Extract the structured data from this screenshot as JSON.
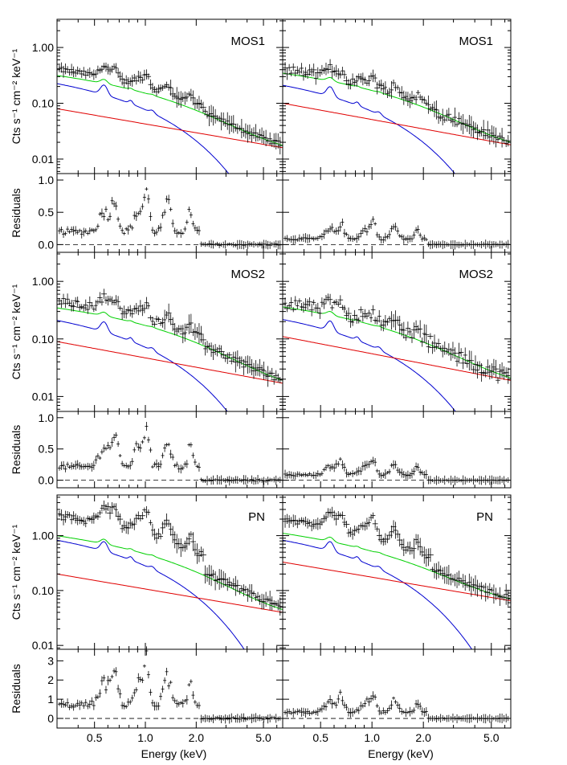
{
  "labels": {
    "xlabel": "Energy (keV)",
    "ylabel_flux": "Cts s⁻¹ cm⁻² keV⁻¹",
    "ylabel_resid": "Residuals"
  },
  "chart_data": {
    "type": "line",
    "x_scale": "log",
    "xlim": [
      0.3,
      6.5
    ],
    "x_ticks": [
      0.5,
      1.0,
      2.0,
      5.0
    ],
    "x_tick_labels": [
      "0.5",
      "1.0",
      "2.0",
      "5.0"
    ],
    "xlabel": "Energy (keV)",
    "line_colors": {
      "powerlaw": "#e00000",
      "total": "#00d000",
      "thermal": "#0000d0",
      "data": "#000000"
    },
    "rows": [
      {
        "instrument": "MOS1",
        "flux_ylim": [
          0.0055,
          3.2
        ],
        "flux_ticks": [
          0.01,
          0.1,
          1.0
        ],
        "flux_tick_labels": [
          "0.01",
          "0.10",
          "1.00"
        ],
        "resid_ylim": [
          -0.12,
          1.1
        ],
        "resid_ticks": [
          0,
          0.5,
          1.0
        ],
        "resid_tick_labels": [
          "0.0",
          "0.5",
          "1.0"
        ],
        "panels": [
          {
            "instrument": "MOS1",
            "powerlaw": {
              "x": [
                0.3,
                6.5
              ],
              "y": [
                0.08,
                0.016
              ]
            },
            "peak": 0.3,
            "total_offset": 0.1,
            "data_level": 0.5,
            "noise": 0.2,
            "resid_scale": 0.8
          },
          {
            "instrument": "MOS1",
            "powerlaw": {
              "x": [
                0.3,
                6.5
              ],
              "y": [
                0.1,
                0.018
              ]
            },
            "peak": 0.28,
            "total_offset": 0.12,
            "data_level": 0.33,
            "noise": 0.35,
            "resid_scale": 0.35
          }
        ]
      },
      {
        "instrument": "MOS2",
        "flux_ylim": [
          0.0055,
          3.2
        ],
        "flux_ticks": [
          0.01,
          0.1,
          1.0
        ],
        "flux_tick_labels": [
          "0.01",
          "0.10",
          "1.00"
        ],
        "resid_ylim": [
          -0.12,
          1.1
        ],
        "resid_ticks": [
          0,
          0.5,
          1.0
        ],
        "resid_tick_labels": [
          "0.0",
          "0.5",
          "1.0"
        ],
        "panels": [
          {
            "instrument": "MOS2",
            "powerlaw": {
              "x": [
                0.3,
                6.5
              ],
              "y": [
                0.09,
                0.017
              ]
            },
            "peak": 0.28,
            "total_offset": 0.13,
            "data_level": 0.55,
            "noise": 0.3,
            "resid_scale": 0.85
          },
          {
            "instrument": "MOS2",
            "powerlaw": {
              "x": [
                0.3,
                6.5
              ],
              "y": [
                0.11,
                0.019
              ]
            },
            "peak": 0.29,
            "total_offset": 0.12,
            "data_level": 0.32,
            "noise": 0.5,
            "resid_scale": 0.35
          }
        ]
      },
      {
        "instrument": "PN",
        "flux_ylim": [
          0.0085,
          5.5
        ],
        "flux_ticks": [
          0.01,
          0.1,
          1.0
        ],
        "flux_tick_labels": [
          "0.01",
          "0.10",
          "1.00"
        ],
        "resid_ylim": [
          -0.5,
          3.6
        ],
        "resid_ticks": [
          0,
          1,
          2,
          3
        ],
        "resid_tick_labels": [
          "0",
          "1",
          "2",
          "3"
        ],
        "panels": [
          {
            "instrument": "PN",
            "powerlaw": {
              "x": [
                0.3,
                6.5
              ],
              "y": [
                0.2,
                0.04
              ]
            },
            "peak": 1.1,
            "total_offset": 0.3,
            "data_level": 2.2,
            "noise": 0.25,
            "resid_scale": 2.8
          },
          {
            "instrument": "PN",
            "powerlaw": {
              "x": [
                0.3,
                6.5
              ],
              "y": [
                0.33,
                0.065
              ]
            },
            "peak": 1.1,
            "total_offset": 0.28,
            "data_level": 1.3,
            "noise": 0.2,
            "resid_scale": 1.3
          }
        ]
      }
    ]
  }
}
